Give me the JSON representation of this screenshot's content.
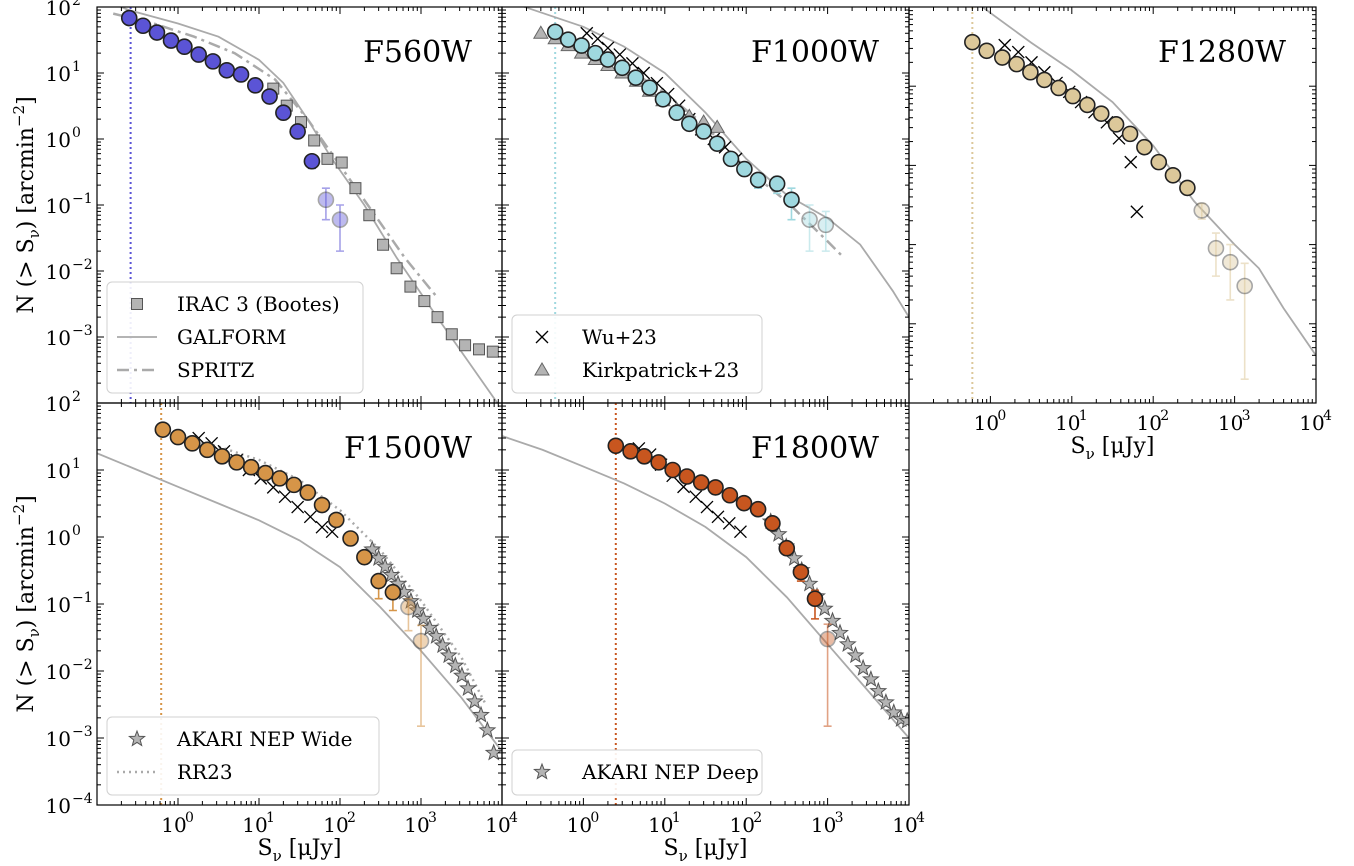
{
  "figure": {
    "ylabel": "N (> Sν) [arcmin⁻²]",
    "xlabel": "Sν [μJy]",
    "xlabel_main": "S",
    "xlabel_sub": "ν",
    "xlabel_unit": "[μJy]",
    "ylabel_main": "N (> S",
    "ylabel_sub": "ν",
    "ylabel_tail": ") [arcmin",
    "ylabel_sup": "−2",
    "ylabel_end": "]",
    "x_tick_labels": [
      {
        "value": 1,
        "base": "10",
        "exp": "0"
      },
      {
        "value": 10,
        "base": "10",
        "exp": "1"
      },
      {
        "value": 100,
        "base": "10",
        "exp": "2"
      },
      {
        "value": 1000,
        "base": "10",
        "exp": "3"
      },
      {
        "value": 10000,
        "base": "10",
        "exp": "4"
      }
    ],
    "y_tick_labels": [
      {
        "value": 100,
        "base": "10",
        "exp": "2"
      },
      {
        "value": 10,
        "base": "10",
        "exp": "1"
      },
      {
        "value": 1,
        "base": "10",
        "exp": "0"
      },
      {
        "value": 0.1,
        "base": "10",
        "exp": "−1"
      },
      {
        "value": 0.01,
        "base": "10",
        "exp": "−2"
      },
      {
        "value": 0.001,
        "base": "10",
        "exp": "−3"
      },
      {
        "value": 0.0001,
        "base": "10",
        "exp": "−4"
      }
    ],
    "colors": {
      "model_line": "#aaaaaa",
      "marker_edge": "#222222",
      "grey_marker": "#b4b4b4"
    }
  },
  "chart_data": [
    {
      "type": "scatter",
      "title": "F560W",
      "color": "#5b54d6",
      "xlim": [
        0.1,
        10000
      ],
      "ylim": [
        0.0001,
        100
      ],
      "x_scale": "log",
      "y_scale": "log",
      "limit_line_x": 0.26,
      "series": [
        {
          "name": "F560W counts",
          "marker": "circle",
          "x": [
            0.25,
            0.37,
            0.55,
            0.82,
            1.2,
            1.8,
            2.7,
            4.0,
            6.0,
            9.0,
            13.5,
            20,
            30,
            45,
            67,
            100
          ],
          "y": [
            68,
            52,
            41,
            31,
            25,
            19,
            15,
            11,
            9.5,
            6.5,
            4.4,
            2.5,
            1.3,
            0.46,
            0.12,
            0.06
          ],
          "yerr_low": [
            0,
            0,
            0,
            0,
            0,
            0,
            0,
            0,
            0,
            0,
            0,
            0,
            0,
            0.1,
            0.06,
            0.04
          ],
          "yerr_high": [
            0,
            0,
            0,
            0,
            0,
            0,
            0,
            0,
            0,
            0,
            0,
            0,
            0,
            0.1,
            0.06,
            0.04
          ],
          "faded_from_index": 14
        },
        {
          "name": "IRAC 3 (Bootes)",
          "marker": "square",
          "x": [
            15,
            22,
            33,
            48,
            70,
            105,
            155,
            230,
            340,
            500,
            740,
            1100,
            1600,
            2400,
            3500,
            5200,
            7700
          ],
          "y": [
            5.8,
            3.2,
            1.8,
            0.95,
            0.5,
            0.44,
            0.18,
            0.07,
            0.025,
            0.011,
            0.0058,
            0.0035,
            0.002,
            0.0011,
            0.00075,
            0.00065,
            0.0006
          ]
        }
      ],
      "legend": [
        {
          "label": "IRAC 3 (Bootes)",
          "kind": "square"
        },
        {
          "label": "GALFORM",
          "kind": "solid"
        },
        {
          "label": "SPRITZ",
          "kind": "dashdot"
        }
      ],
      "legend_position": "lower-left"
    },
    {
      "type": "scatter",
      "title": "F1000W",
      "color": "#9fd8df",
      "xlim": [
        0.1,
        10000
      ],
      "ylim": [
        0.0001,
        100
      ],
      "x_scale": "log",
      "y_scale": "log",
      "limit_line_x": 0.45,
      "series": [
        {
          "name": "F1000W counts",
          "marker": "circle",
          "x": [
            0.45,
            0.65,
            0.95,
            1.4,
            2.0,
            3.0,
            4.4,
            6.5,
            9.5,
            14,
            20,
            30,
            44,
            65,
            95,
            140,
            240,
            360,
            600,
            950
          ],
          "y": [
            42,
            32,
            26,
            20,
            16,
            12,
            8.5,
            6.0,
            4.0,
            2.5,
            1.7,
            1.3,
            0.85,
            0.5,
            0.35,
            0.24,
            0.21,
            0.12,
            0.06,
            0.05
          ],
          "yerr_low": [
            0,
            0,
            0,
            0,
            0,
            0,
            0,
            0,
            0,
            0,
            0,
            0,
            0,
            0,
            0,
            0.06,
            0.06,
            0.06,
            0.04,
            0.03
          ],
          "yerr_high": [
            0,
            0,
            0,
            0,
            0,
            0,
            0,
            0,
            0,
            0,
            0,
            0,
            0,
            0,
            0,
            0.06,
            0.06,
            0.06,
            0.04,
            0.03
          ],
          "faded_from_index": 18
        },
        {
          "name": "Wu+23",
          "marker": "x",
          "x": [
            1.1,
            1.5,
            2.0,
            2.8,
            4,
            5.5,
            8,
            11,
            15,
            20,
            28,
            40,
            55,
            75
          ],
          "y": [
            40,
            33,
            24,
            19,
            14,
            10,
            7,
            4.8,
            3.2,
            2.0,
            1.4,
            1.0,
            0.75,
            0.5
          ]
        },
        {
          "name": "Kirkpatrick+23",
          "marker": "triangle",
          "x": [
            0.3,
            0.45,
            0.65,
            0.95,
            1.4,
            2.0,
            3.0,
            4.5,
            6.5,
            9.5,
            14,
            20,
            30,
            44
          ],
          "y": [
            40,
            33,
            26,
            20,
            16,
            13,
            10,
            7.5,
            5.3,
            3.8,
            2.8,
            2.2,
            1.8,
            1.5
          ]
        }
      ],
      "legend": [
        {
          "label": "Wu+23",
          "kind": "x"
        },
        {
          "label": "Kirkpatrick+23",
          "kind": "triangle"
        }
      ],
      "legend_position": "lower-left"
    },
    {
      "type": "scatter",
      "title": "F1280W",
      "color": "#dcc89a",
      "xlim": [
        0.1,
        10000
      ],
      "ylim": [
        0.001,
        100
      ],
      "x_scale": "log",
      "y_scale": "log",
      "limit_line_x": 0.6,
      "series": [
        {
          "name": "F1280W counts",
          "marker": "circle",
          "x": [
            0.6,
            0.9,
            1.4,
            2.1,
            3.1,
            4.6,
            6.9,
            10.3,
            15.5,
            23,
            35,
            52,
            78,
            117,
            175,
            263,
            395,
            590,
            885,
            1330
          ],
          "y": [
            36,
            28,
            23,
            19,
            15,
            12,
            9.5,
            7.5,
            5.8,
            4.5,
            3.3,
            2.5,
            1.7,
            1.1,
            0.75,
            0.52,
            0.27,
            0.09,
            0.06,
            0.03
          ],
          "yerr_low": [
            0,
            0,
            0,
            0,
            0,
            0,
            0,
            0,
            0,
            0,
            0,
            0,
            0,
            0,
            0,
            0,
            0.06,
            0.05,
            0.04,
            0.028
          ],
          "yerr_high": [
            0,
            0,
            0,
            0,
            0,
            0,
            0,
            0,
            0,
            0,
            0,
            0,
            0,
            0,
            0,
            0,
            0.06,
            0.05,
            0.04,
            0.028
          ],
          "faded_from_index": 16
        },
        {
          "name": "Wu+23",
          "marker": "x",
          "x": [
            1.5,
            2.2,
            3.2,
            4.6,
            6.5,
            9.3,
            13,
            19,
            27,
            38,
            53,
            63
          ],
          "y": [
            33,
            27,
            20,
            15,
            11,
            8.5,
            6.3,
            4.7,
            3.5,
            2.2,
            1.1,
            0.26
          ]
        }
      ],
      "legend": [],
      "legend_position": ""
    },
    {
      "type": "scatter",
      "title": "F1500W",
      "color": "#d69548",
      "xlim": [
        0.1,
        10000
      ],
      "ylim": [
        0.0001,
        100
      ],
      "x_scale": "log",
      "y_scale": "log",
      "limit_line_x": 0.62,
      "series": [
        {
          "name": "F1500W counts",
          "marker": "circle",
          "x": [
            0.65,
            1.0,
            1.5,
            2.3,
            3.5,
            5.3,
            8.0,
            12,
            18,
            27,
            40,
            60,
            90,
            135,
            200,
            300,
            450,
            700,
            1000
          ],
          "y": [
            40,
            31,
            25,
            20,
            16,
            13,
            11,
            9,
            7.5,
            6.0,
            4.6,
            3.0,
            1.8,
            0.95,
            0.5,
            0.22,
            0.15,
            0.09,
            0.028
          ],
          "yerr_low": [
            0,
            0,
            0,
            0,
            0,
            0,
            0,
            0,
            0,
            0,
            0,
            0,
            0,
            0,
            0,
            0.1,
            0.07,
            0.05,
            0.0265
          ],
          "yerr_high": [
            0,
            0,
            0,
            0,
            0,
            0,
            0,
            0,
            0,
            0,
            0,
            0,
            0,
            0,
            0,
            0.05,
            0.04,
            0.03,
            0.02
          ],
          "faded_from_index": 17
        },
        {
          "name": "Wu+23",
          "marker": "x",
          "x": [
            1.8,
            2.6,
            3.7,
            5.3,
            7.5,
            10.5,
            15,
            21,
            30,
            43,
            60,
            80
          ],
          "y": [
            30,
            25,
            19,
            14,
            10,
            7.5,
            5.5,
            4.0,
            2.8,
            2.0,
            1.4,
            1.2
          ]
        },
        {
          "name": "AKARI NEP Wide",
          "marker": "star",
          "x": [
            250,
            300,
            360,
            430,
            520,
            620,
            750,
            900,
            1070,
            1280,
            1540,
            1850,
            2200,
            2650,
            3200,
            3800,
            4600,
            5500,
            6600,
            7900
          ],
          "y": [
            0.65,
            0.48,
            0.36,
            0.27,
            0.2,
            0.15,
            0.11,
            0.08,
            0.06,
            0.044,
            0.033,
            0.024,
            0.017,
            0.012,
            0.0085,
            0.0055,
            0.0035,
            0.0022,
            0.0013,
            0.0006
          ]
        }
      ],
      "legend": [
        {
          "label": "AKARI NEP Wide",
          "kind": "star"
        },
        {
          "label": "RR23",
          "kind": "dotted"
        }
      ],
      "legend_position": "lower-left"
    },
    {
      "type": "scatter",
      "title": "F1800W",
      "color": "#c8561f",
      "xlim": [
        0.1,
        10000
      ],
      "ylim": [
        0.0001,
        100
      ],
      "x_scale": "log",
      "y_scale": "log",
      "limit_line_x": 2.5,
      "series": [
        {
          "name": "F1800W counts",
          "marker": "circle",
          "x": [
            2.5,
            3.8,
            5.6,
            8.4,
            12.5,
            18.7,
            28,
            42,
            63,
            94,
            140,
            210,
            315,
            470,
            700,
            1000
          ],
          "y": [
            23,
            19,
            16,
            13,
            10,
            8,
            6.5,
            5.5,
            4.2,
            3.2,
            2.6,
            1.6,
            0.68,
            0.3,
            0.12,
            0.03
          ],
          "yerr_low": [
            0,
            0,
            0,
            0,
            0,
            0,
            0,
            0,
            0,
            0,
            0,
            0,
            0,
            0.08,
            0.06,
            0.0285
          ],
          "yerr_high": [
            0,
            0,
            0,
            0,
            0,
            0,
            0,
            0,
            0,
            0,
            0,
            0,
            0,
            0.06,
            0.04,
            0.02
          ],
          "faded_from_index": 15
        },
        {
          "name": "Wu+23",
          "marker": "x",
          "x": [
            4.8,
            6.6,
            9.0,
            12.5,
            17,
            24,
            33,
            45,
            62,
            85
          ],
          "y": [
            21,
            17,
            12,
            8.2,
            5.6,
            4.0,
            2.8,
            2.0,
            1.6,
            1.2
          ]
        },
        {
          "name": "AKARI NEP Deep",
          "marker": "star",
          "x": [
            200,
            250,
            310,
            390,
            480,
            600,
            740,
            920,
            1150,
            1420,
            1770,
            2200,
            2730,
            3400,
            4200,
            5200,
            6500,
            8000,
            9500
          ],
          "y": [
            1.7,
            1.1,
            0.72,
            0.48,
            0.32,
            0.2,
            0.13,
            0.085,
            0.056,
            0.037,
            0.025,
            0.017,
            0.011,
            0.0075,
            0.005,
            0.0034,
            0.0024,
            0.0019,
            0.0018
          ]
        }
      ],
      "legend": [
        {
          "label": "AKARI NEP Deep",
          "kind": "star"
        }
      ],
      "legend_position": "lower-left"
    }
  ]
}
